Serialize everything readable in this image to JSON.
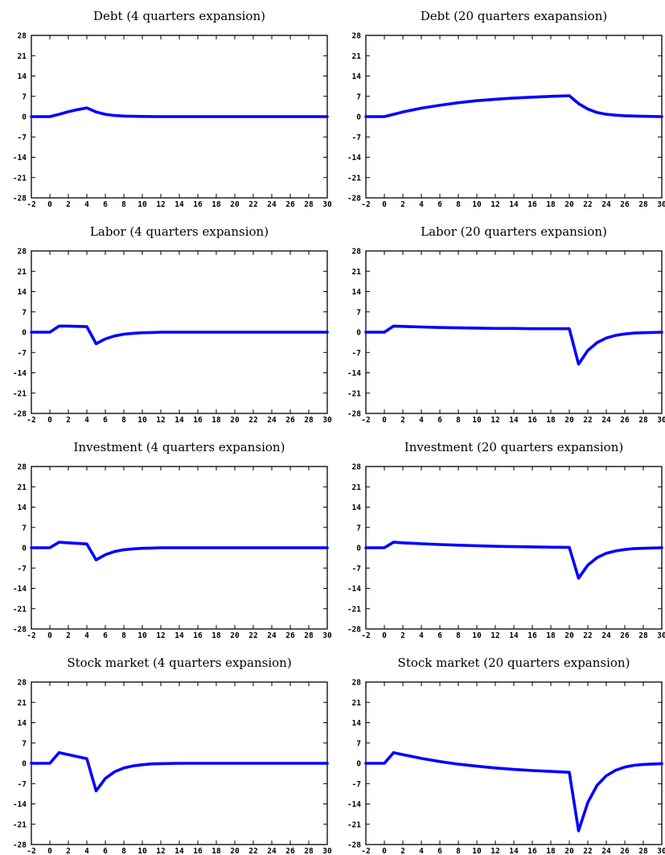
{
  "chart_data": [
    {
      "type": "line",
      "title": "Debt (4 quarters expansion)",
      "xlim": [
        -2,
        30
      ],
      "ylim": [
        -28,
        28
      ],
      "xticks": [
        -2,
        0,
        2,
        4,
        6,
        8,
        10,
        12,
        14,
        16,
        18,
        20,
        22,
        24,
        26,
        28,
        30
      ],
      "yticks": [
        28,
        21,
        14,
        7,
        0,
        -7,
        -14,
        -21,
        -28
      ],
      "line_color": "#0000ff",
      "series": [
        {
          "x": [
            -2,
            0,
            1,
            2,
            3,
            4,
            5,
            6,
            7,
            8,
            9,
            10,
            12,
            14,
            16,
            18,
            20,
            22,
            24,
            26,
            28,
            30
          ],
          "y": [
            0,
            0,
            0.8,
            1.7,
            2.4,
            3.0,
            1.6,
            0.8,
            0.4,
            0.2,
            0.1,
            0.05,
            0,
            0,
            0,
            0,
            0,
            0,
            0,
            0,
            0,
            0
          ]
        }
      ]
    },
    {
      "type": "line",
      "title": "Debt (20 quarters exapansion)",
      "xlim": [
        -2,
        30
      ],
      "ylim": [
        -28,
        28
      ],
      "xticks": [
        -2,
        0,
        2,
        4,
        6,
        8,
        10,
        12,
        14,
        16,
        18,
        20,
        22,
        24,
        26,
        28,
        30
      ],
      "yticks": [
        28,
        21,
        14,
        7,
        0,
        -7,
        -14,
        -21,
        -28
      ],
      "line_color": "#0000ff",
      "series": [
        {
          "x": [
            -2,
            0,
            1,
            2,
            4,
            6,
            8,
            10,
            12,
            14,
            16,
            18,
            20,
            21,
            22,
            23,
            24,
            25,
            26,
            28,
            30
          ],
          "y": [
            0,
            0,
            0.8,
            1.6,
            2.9,
            3.9,
            4.8,
            5.5,
            6.0,
            6.4,
            6.7,
            7.0,
            7.2,
            4.5,
            2.6,
            1.4,
            0.8,
            0.5,
            0.3,
            0.1,
            0
          ]
        }
      ]
    },
    {
      "type": "line",
      "title": "Labor (4 quarters expansion)",
      "xlim": [
        -2,
        30
      ],
      "ylim": [
        -28,
        28
      ],
      "xticks": [
        -2,
        0,
        2,
        4,
        6,
        8,
        10,
        12,
        14,
        16,
        18,
        20,
        22,
        24,
        26,
        28,
        30
      ],
      "yticks": [
        28,
        21,
        14,
        7,
        0,
        -7,
        -14,
        -21,
        -28
      ],
      "line_color": "#0000ff",
      "series": [
        {
          "x": [
            -2,
            0,
            1,
            2,
            3,
            4,
            5,
            6,
            7,
            8,
            9,
            10,
            11,
            12,
            14,
            16,
            18,
            20,
            22,
            24,
            26,
            28,
            30
          ],
          "y": [
            0,
            0,
            2.1,
            2.1,
            2.0,
            1.9,
            -4.0,
            -2.3,
            -1.3,
            -0.7,
            -0.4,
            -0.2,
            -0.1,
            0,
            0,
            0,
            0,
            0,
            0,
            0,
            0,
            0,
            0
          ]
        }
      ]
    },
    {
      "type": "line",
      "title": "Labor (20 quarters expansion)",
      "xlim": [
        -2,
        30
      ],
      "ylim": [
        -28,
        28
      ],
      "xticks": [
        -2,
        0,
        2,
        4,
        6,
        8,
        10,
        12,
        14,
        16,
        18,
        20,
        22,
        24,
        26,
        28,
        30
      ],
      "yticks": [
        28,
        21,
        14,
        7,
        0,
        -7,
        -14,
        -21,
        -28
      ],
      "line_color": "#0000ff",
      "series": [
        {
          "x": [
            -2,
            0,
            1,
            2,
            4,
            6,
            8,
            10,
            12,
            14,
            16,
            18,
            20,
            21,
            22,
            23,
            24,
            25,
            26,
            27,
            28,
            30
          ],
          "y": [
            0,
            0,
            2.1,
            2.0,
            1.8,
            1.6,
            1.5,
            1.4,
            1.3,
            1.3,
            1.2,
            1.2,
            1.2,
            -11.0,
            -6.3,
            -3.6,
            -2.0,
            -1.1,
            -0.6,
            -0.3,
            -0.2,
            0
          ]
        }
      ]
    },
    {
      "type": "line",
      "title": "Investment (4 quarters expansion)",
      "xlim": [
        -2,
        30
      ],
      "ylim": [
        -28,
        28
      ],
      "xticks": [
        -2,
        0,
        2,
        4,
        6,
        8,
        10,
        12,
        14,
        16,
        18,
        20,
        22,
        24,
        26,
        28,
        30
      ],
      "yticks": [
        28,
        21,
        14,
        7,
        0,
        -7,
        -14,
        -21,
        -28
      ],
      "line_color": "#0000ff",
      "series": [
        {
          "x": [
            -2,
            0,
            1,
            2,
            3,
            4,
            5,
            6,
            7,
            8,
            9,
            10,
            11,
            12,
            14,
            16,
            18,
            20,
            22,
            24,
            26,
            28,
            30
          ],
          "y": [
            0,
            0,
            1.9,
            1.7,
            1.5,
            1.3,
            -4.2,
            -2.4,
            -1.3,
            -0.7,
            -0.4,
            -0.2,
            -0.1,
            0,
            0,
            0,
            0,
            0,
            0,
            0,
            0,
            0,
            0
          ]
        }
      ]
    },
    {
      "type": "line",
      "title": "Investment (20 quarters expansion)",
      "xlim": [
        -2,
        30
      ],
      "ylim": [
        -28,
        28
      ],
      "xticks": [
        -2,
        0,
        2,
        4,
        6,
        8,
        10,
        12,
        14,
        16,
        18,
        20,
        22,
        24,
        26,
        28,
        30
      ],
      "yticks": [
        28,
        21,
        14,
        7,
        0,
        -7,
        -14,
        -21,
        -28
      ],
      "line_color": "#0000ff",
      "series": [
        {
          "x": [
            -2,
            0,
            1,
            2,
            4,
            6,
            8,
            10,
            12,
            14,
            16,
            18,
            20,
            21,
            22,
            23,
            24,
            25,
            26,
            27,
            28,
            30
          ],
          "y": [
            0,
            0,
            1.9,
            1.7,
            1.4,
            1.1,
            0.9,
            0.7,
            0.5,
            0.4,
            0.3,
            0.2,
            0.1,
            -10.5,
            -6.0,
            -3.4,
            -1.9,
            -1.1,
            -0.6,
            -0.3,
            -0.2,
            0
          ]
        }
      ]
    },
    {
      "type": "line",
      "title": "Stock market (4 quarters expansion)",
      "xlim": [
        -2,
        30
      ],
      "ylim": [
        -28,
        28
      ],
      "xticks": [
        -2,
        0,
        2,
        4,
        6,
        8,
        10,
        12,
        14,
        16,
        18,
        20,
        22,
        24,
        26,
        28,
        30
      ],
      "yticks": [
        28,
        21,
        14,
        7,
        0,
        -7,
        -14,
        -21,
        -28
      ],
      "line_color": "#0000ff",
      "series": [
        {
          "x": [
            -2,
            0,
            1,
            2,
            3,
            4,
            5,
            6,
            7,
            8,
            9,
            10,
            11,
            12,
            14,
            16,
            18,
            20,
            22,
            24,
            26,
            28,
            30
          ],
          "y": [
            0,
            0,
            3.7,
            3.0,
            2.3,
            1.6,
            -9.5,
            -5.2,
            -2.9,
            -1.6,
            -0.9,
            -0.5,
            -0.2,
            -0.1,
            0,
            0,
            0,
            0,
            0,
            0,
            0,
            0,
            0
          ]
        }
      ]
    },
    {
      "type": "line",
      "title": "Stock market (20 quarters expansion)",
      "xlim": [
        -2,
        30
      ],
      "ylim": [
        -28,
        28
      ],
      "xticks": [
        -2,
        0,
        2,
        4,
        6,
        8,
        10,
        12,
        14,
        16,
        18,
        20,
        22,
        24,
        26,
        28,
        30
      ],
      "yticks": [
        28,
        21,
        14,
        7,
        0,
        -7,
        -14,
        -21,
        -28
      ],
      "line_color": "#0000ff",
      "series": [
        {
          "x": [
            -2,
            0,
            1,
            2,
            4,
            6,
            8,
            10,
            12,
            14,
            16,
            18,
            20,
            21,
            22,
            23,
            24,
            25,
            26,
            27,
            28,
            30
          ],
          "y": [
            0,
            0,
            3.7,
            3.0,
            1.7,
            0.6,
            -0.3,
            -1.0,
            -1.6,
            -2.1,
            -2.5,
            -2.8,
            -3.1,
            -23.3,
            -13.5,
            -7.6,
            -4.3,
            -2.4,
            -1.3,
            -0.7,
            -0.4,
            -0.1
          ]
        }
      ]
    }
  ]
}
